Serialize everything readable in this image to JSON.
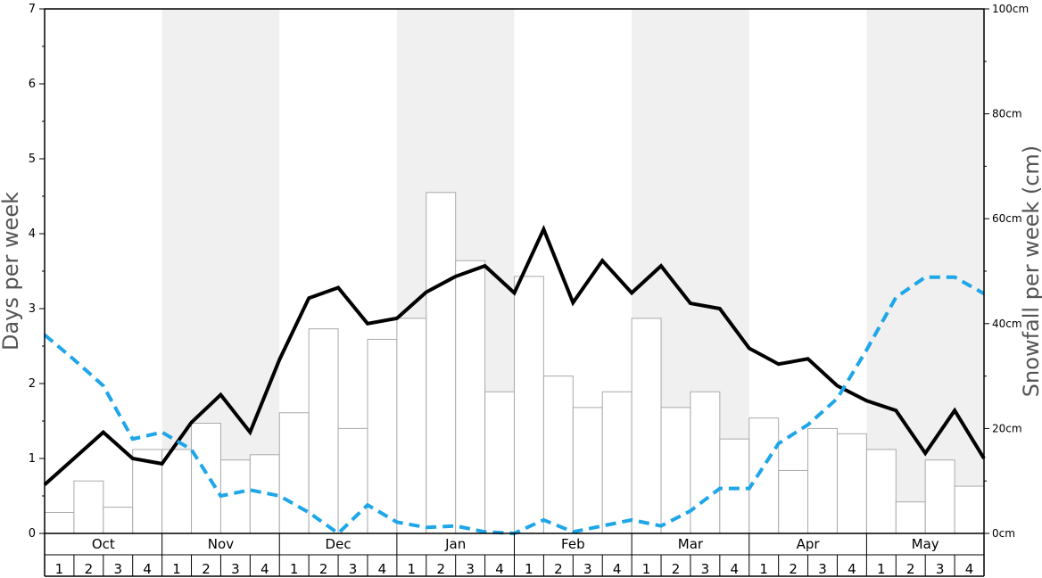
{
  "chart_data": {
    "type": "bar",
    "left_axis": {
      "label": "Days per week",
      "ylim": [
        0,
        7
      ],
      "ticks": [
        "0",
        "1",
        "2",
        "3",
        "4",
        "5",
        "6",
        "7"
      ]
    },
    "right_axis": {
      "label": "Snowfall per week (cm)",
      "ylim": [
        0,
        100
      ],
      "ticks": [
        "0cm",
        "20cm",
        "40cm",
        "60cm",
        "80cm",
        "100cm"
      ]
    },
    "months": [
      "Oct",
      "Nov",
      "Dec",
      "Jan",
      "Feb",
      "Mar",
      "Apr",
      "May"
    ],
    "weeks": [
      "1",
      "2",
      "3",
      "4"
    ],
    "series": [
      {
        "kind": "bar",
        "axis": "right",
        "color": "#ffffff",
        "stroke": "#aaaaaa",
        "values": [
          4,
          10,
          5,
          16,
          16,
          21,
          14,
          15,
          23,
          39,
          20,
          37,
          41,
          65,
          52,
          27,
          49,
          30,
          24,
          27,
          41,
          24,
          27,
          18,
          22,
          12,
          20,
          19,
          16,
          6,
          14,
          9
        ]
      },
      {
        "kind": "line",
        "axis": "left",
        "color": "#000000",
        "dash": "solid",
        "values": [
          0.65,
          1.0,
          1.35,
          1.0,
          0.93,
          1.48,
          1.85,
          1.35,
          2.32,
          3.14,
          3.28,
          2.8,
          2.87,
          3.22,
          3.43,
          3.57,
          3.21,
          4.06,
          3.08,
          3.64,
          3.21,
          3.57,
          3.07,
          3.0,
          2.47,
          2.26,
          2.33,
          1.97,
          1.77,
          1.64,
          1.07,
          1.64,
          1.0
        ]
      },
      {
        "kind": "line",
        "axis": "left",
        "color": "#1ea6e8",
        "dash": "dashed",
        "values": [
          2.65,
          2.32,
          1.97,
          1.26,
          1.35,
          1.12,
          0.5,
          0.58,
          0.5,
          0.28,
          0.0,
          0.38,
          0.15,
          0.08,
          0.1,
          0.02,
          0.0,
          0.18,
          0.02,
          0.1,
          0.18,
          0.1,
          0.3,
          0.6,
          0.6,
          1.2,
          1.45,
          1.8,
          2.45,
          3.15,
          3.42,
          3.42,
          3.2
        ]
      }
    ],
    "background_bands": "alternating months shaded light gray (Nov, Jan, Mar, May)",
    "legend": "none",
    "grid": false
  }
}
